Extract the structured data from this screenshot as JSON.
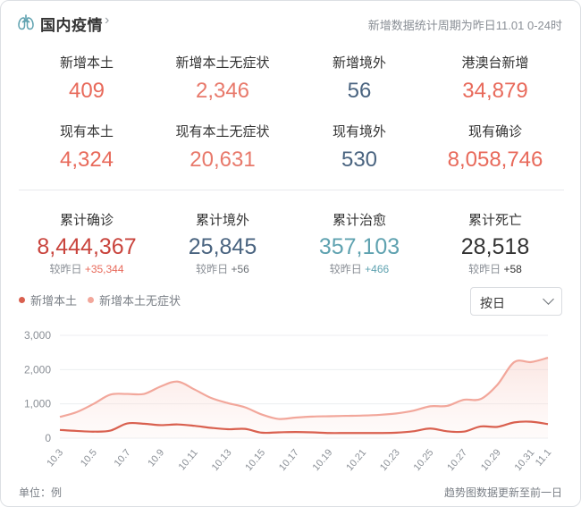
{
  "header": {
    "title": "国内疫情",
    "period": "新增数据统计周期为昨日11.01 0-24时"
  },
  "stats_row1": [
    {
      "label": "新增本土",
      "value": "409",
      "color": "#e86a5b"
    },
    {
      "label": "新增本土无症状",
      "value": "2,346",
      "color": "#e8796b"
    },
    {
      "label": "新增境外",
      "value": "56",
      "color": "#4a6480"
    },
    {
      "label": "港澳台新增",
      "value": "34,879",
      "color": "#e86a5b"
    }
  ],
  "stats_row2": [
    {
      "label": "现有本土",
      "value": "4,324",
      "color": "#e86a5b"
    },
    {
      "label": "现有本土无症状",
      "value": "20,631",
      "color": "#e8796b"
    },
    {
      "label": "现有境外",
      "value": "530",
      "color": "#4a6480"
    },
    {
      "label": "现有确诊",
      "value": "8,058,746",
      "color": "#e86a5b"
    }
  ],
  "cumulative": [
    {
      "label": "累计确诊",
      "value": "8,444,367",
      "change_prefix": "较昨日",
      "change": "+35,344",
      "color": "#c9443d",
      "change_color": "#e86a5b"
    },
    {
      "label": "累计境外",
      "value": "25,845",
      "change_prefix": "较昨日",
      "change": "+56",
      "color": "#4a6480",
      "change_color": "#8a8f96"
    },
    {
      "label": "累计治愈",
      "value": "357,103",
      "change_prefix": "较昨日",
      "change": "+466",
      "color": "#5fa2b0",
      "change_color": "#5fa2b0"
    },
    {
      "label": "累计死亡",
      "value": "28,518",
      "change_prefix": "较昨日",
      "change": "+58",
      "color": "#333333",
      "change_color": "#333333"
    }
  ],
  "controls": {
    "range_select": "按日"
  },
  "footer": {
    "unit": "单位：例",
    "note": "趋势图数据更新至前一日"
  },
  "chart_data": {
    "type": "area",
    "x": [
      "10.3",
      "10.4",
      "10.5",
      "10.6",
      "10.7",
      "10.8",
      "10.9",
      "10.10",
      "10.11",
      "10.12",
      "10.13",
      "10.14",
      "10.15",
      "10.16",
      "10.17",
      "10.18",
      "10.19",
      "10.20",
      "10.21",
      "10.22",
      "10.23",
      "10.24",
      "10.25",
      "10.26",
      "10.27",
      "10.28",
      "10.29",
      "10.30",
      "10.31",
      "11.1"
    ],
    "tick_labels": [
      "10.3",
      "10.5",
      "10.7",
      "10.9",
      "10.11",
      "10.13",
      "10.15",
      "10.17",
      "10.19",
      "10.21",
      "10.23",
      "10.25",
      "10.27",
      "10.29",
      "10.31",
      "11.1"
    ],
    "series": [
      {
        "name": "新增本土",
        "color": "#d9604f",
        "values": [
          240,
          210,
          190,
          220,
          430,
          420,
          380,
          400,
          360,
          300,
          260,
          270,
          160,
          170,
          180,
          170,
          150,
          150,
          150,
          150,
          160,
          200,
          280,
          200,
          190,
          340,
          330,
          460,
          480,
          409
        ]
      },
      {
        "name": "新增本土无症状",
        "color": "#f2a79b",
        "values": [
          620,
          760,
          1000,
          1270,
          1290,
          1290,
          1510,
          1650,
          1420,
          1170,
          1020,
          900,
          690,
          560,
          600,
          630,
          640,
          650,
          660,
          680,
          720,
          800,
          930,
          940,
          1120,
          1140,
          1560,
          2220,
          2220,
          2346
        ]
      }
    ],
    "yticks": [
      0,
      1000,
      2000,
      3000
    ],
    "yticklabels": [
      "0",
      "1,000",
      "2,000",
      "3,000"
    ],
    "ylim": [
      0,
      3000
    ],
    "grid": true,
    "legend": "top-left"
  }
}
